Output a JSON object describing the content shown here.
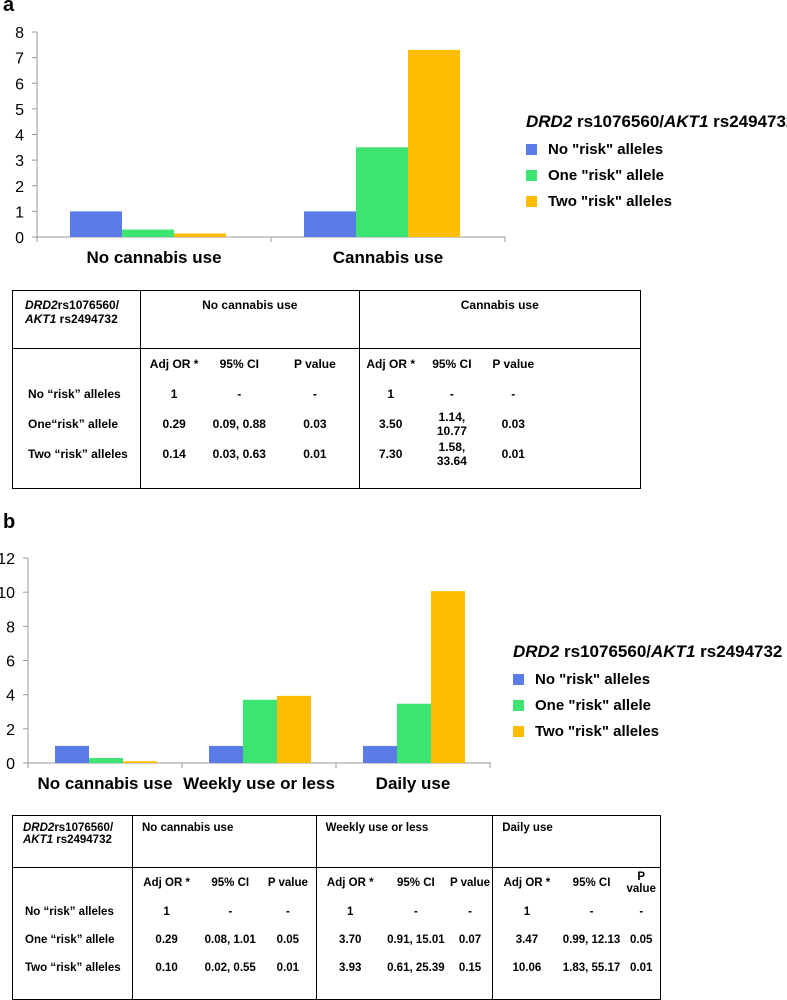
{
  "panels": {
    "a": {
      "label": "a"
    },
    "b": {
      "label": "b"
    }
  },
  "legend": {
    "title_gene1": "DRD2",
    "title_snp1": " rs1076560/",
    "title_gene2": "AKT1",
    "title_snp2": " rs2494732",
    "series": [
      "No \"risk\" alleles",
      "One \"risk\" allele",
      "Two \"risk\" alleles"
    ],
    "colors": [
      "#5b7ce6",
      "#3ee472",
      "#ffbd00"
    ]
  },
  "chart_data": [
    {
      "type": "bar",
      "categories": [
        "No cannabis use",
        "Cannabis use"
      ],
      "series": [
        {
          "name": "No \"risk\" alleles",
          "values": [
            1,
            1
          ]
        },
        {
          "name": "One \"risk\" allele",
          "values": [
            0.29,
            3.5
          ]
        },
        {
          "name": "Two \"risk\" alleles",
          "values": [
            0.14,
            7.3
          ]
        }
      ],
      "ylim": [
        0,
        8
      ],
      "yticks": [
        "0",
        "1",
        "2",
        "3",
        "4",
        "5",
        "6",
        "7",
        "8"
      ],
      "legend": "right"
    },
    {
      "type": "bar",
      "categories": [
        "No cannabis use",
        "Weekly use or less",
        "Daily use"
      ],
      "series": [
        {
          "name": "No \"risk\" alleles",
          "values": [
            1,
            1,
            1
          ]
        },
        {
          "name": "One \"risk\" allele",
          "values": [
            0.29,
            3.7,
            3.47
          ]
        },
        {
          "name": "Two \"risk\" alleles",
          "values": [
            0.1,
            3.93,
            10.06
          ]
        }
      ],
      "ylim": [
        0,
        12
      ],
      "yticks": [
        "0",
        "2",
        "4",
        "6",
        "8",
        "10",
        "12"
      ],
      "legend": "right"
    }
  ],
  "table_a": {
    "header_gene1": "DRD2",
    "header_snp1": "rs1076560/",
    "header_gene2": "AKT1",
    "header_snp2": " rs2494732",
    "groups": [
      "No cannabis use",
      "Cannabis use"
    ],
    "cols": [
      "Adj OR *",
      "95% CI",
      "P value"
    ],
    "rows": [
      {
        "label": "No “risk” alleles",
        "g1": [
          "1",
          "-",
          "-"
        ],
        "g2": [
          "1",
          "-",
          "-"
        ]
      },
      {
        "label": "One“risk” allele",
        "g1": [
          "0.29",
          "0.09, 0.88",
          "0.03"
        ],
        "g2": [
          "3.50",
          "1.14, 10.77",
          "0.03"
        ]
      },
      {
        "label": "Two “risk” alleles",
        "g1": [
          "0.14",
          "0.03, 0.63",
          "0.01"
        ],
        "g2": [
          "7.30",
          "1.58, 33.64",
          "0.01"
        ]
      }
    ]
  },
  "table_b": {
    "header_gene1": "DRD2",
    "header_snp1": "rs1076560/",
    "header_gene2": "AKT1",
    "header_snp2": " rs2494732",
    "groups": [
      "No cannabis use",
      "Weekly use or less",
      "Daily use"
    ],
    "cols": [
      "Adj OR *",
      "95% CI",
      "P value"
    ],
    "rows": [
      {
        "label": "No “risk” alleles",
        "g1": [
          "1",
          "-",
          "-"
        ],
        "g2": [
          "1",
          "-",
          "-"
        ],
        "g3": [
          "1",
          "-",
          "-"
        ]
      },
      {
        "label": "One “risk” allele",
        "g1": [
          "0.29",
          "0.08, 1.01",
          "0.05"
        ],
        "g2": [
          "3.70",
          "0.91, 15.01",
          "0.07"
        ],
        "g3": [
          "3.47",
          "0.99, 12.13",
          "0.05"
        ]
      },
      {
        "label": "Two “risk” alleles",
        "g1": [
          "0.10",
          "0.02, 0.55",
          "0.01"
        ],
        "g2": [
          "3.93",
          "0.61, 25.39",
          "0.15"
        ],
        "g3": [
          "10.06",
          "1.83, 55.17",
          "0.01"
        ]
      }
    ]
  }
}
